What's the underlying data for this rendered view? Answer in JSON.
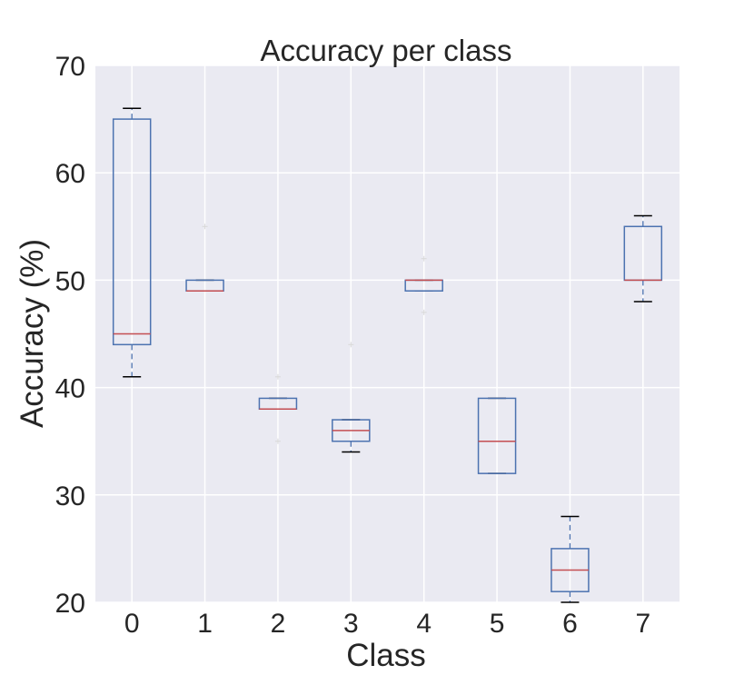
{
  "chart_data": {
    "type": "box",
    "title": "Accuracy per class",
    "xlabel": "Class",
    "ylabel": "Accuracy (%)",
    "ylim": [
      20,
      70
    ],
    "yticks": [
      20,
      30,
      40,
      50,
      60,
      70
    ],
    "grid": true,
    "categories": [
      "0",
      "1",
      "2",
      "3",
      "4",
      "5",
      "6",
      "7"
    ],
    "boxes": [
      {
        "category": "0",
        "whisker_low": 41,
        "q1": 44,
        "median": 45,
        "q3": 65,
        "whisker_high": 66,
        "outliers": []
      },
      {
        "category": "1",
        "whisker_low": 49,
        "q1": 49,
        "median": 49,
        "q3": 50,
        "whisker_high": 50,
        "outliers": [
          55
        ]
      },
      {
        "category": "2",
        "whisker_low": 38,
        "q1": 38,
        "median": 38,
        "q3": 39,
        "whisker_high": 39,
        "outliers": [
          35,
          41
        ]
      },
      {
        "category": "3",
        "whisker_low": 34,
        "q1": 35,
        "median": 36,
        "q3": 37,
        "whisker_high": 37,
        "outliers": [
          44
        ]
      },
      {
        "category": "4",
        "whisker_low": 49,
        "q1": 49,
        "median": 50,
        "q3": 50,
        "whisker_high": 50,
        "outliers": [
          47,
          52
        ]
      },
      {
        "category": "5",
        "whisker_low": 32,
        "q1": 32,
        "median": 35,
        "q3": 39,
        "whisker_high": 39,
        "outliers": []
      },
      {
        "category": "6",
        "whisker_low": 20,
        "q1": 21,
        "median": 23,
        "q3": 25,
        "whisker_high": 28,
        "outliers": []
      },
      {
        "category": "7",
        "whisker_low": 48,
        "q1": 50,
        "median": 50,
        "q3": 55,
        "whisker_high": 56,
        "outliers": []
      }
    ],
    "colors": {
      "plot_background": "#EAEAF2",
      "grid": "#FFFFFF",
      "box": "#4C72B0",
      "median": "#C44E52",
      "cap": "#000000",
      "outlier": "#D8D8D8"
    }
  }
}
